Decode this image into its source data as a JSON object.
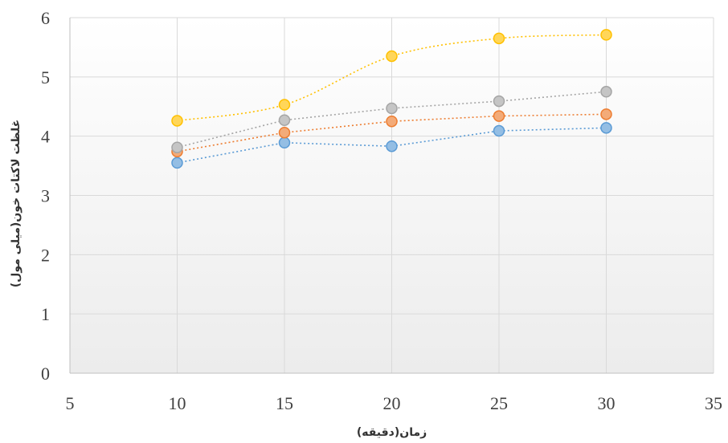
{
  "chart_data": {
    "type": "scatter",
    "title": "",
    "xlabel": "زمان(دقیقه)",
    "ylabel": "غلظت لاکتات خون(میلی مول)",
    "xlim": [
      5,
      35
    ],
    "ylim": [
      0,
      6
    ],
    "x_ticks": [
      "5",
      "10",
      "15",
      "20",
      "25",
      "30",
      "35"
    ],
    "y_ticks": [
      "0",
      "1",
      "2",
      "3",
      "4",
      "5",
      "6"
    ],
    "grid": true,
    "legend": "none",
    "x": [
      10,
      15,
      20,
      25,
      30
    ],
    "series": [
      {
        "values": [
          3.55,
          3.89,
          3.83,
          4.09,
          4.14
        ],
        "color": "#5B9BD5",
        "smooth": false
      },
      {
        "values": [
          3.74,
          4.06,
          4.25,
          4.34,
          4.37
        ],
        "color": "#ED7D31",
        "smooth": false
      },
      {
        "values": [
          3.81,
          4.27,
          4.47,
          4.59,
          4.75
        ],
        "color": "#A5A5A5",
        "smooth": false
      },
      {
        "values": [
          4.26,
          4.53,
          5.35,
          5.65,
          5.71
        ],
        "color": "#FFC000",
        "smooth": true
      }
    ]
  }
}
